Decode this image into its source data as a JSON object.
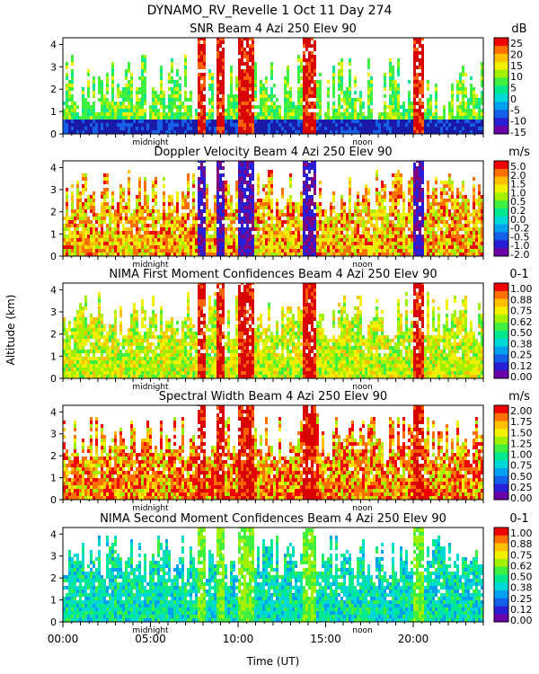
{
  "header": {
    "title": "DYNAMO_RV_Revelle    1 Oct 11 Day 274"
  },
  "shared": {
    "xlabel": "Time (UT)",
    "ylabel": "Altitude (km)",
    "x_ticks": [
      "00:00",
      "05:00",
      "10:00",
      "15:00",
      "20:00"
    ],
    "x_tick_hours": [
      0,
      5,
      10,
      15,
      20
    ],
    "y_ticks": [
      "0",
      "1",
      "2",
      "3",
      "4"
    ],
    "annot_midnight": "midnight",
    "annot_noon": "noon"
  },
  "colors": {
    "scale": [
      "#6a00a8",
      "#2a1fd8",
      "#1560e8",
      "#00a0f0",
      "#00d8d8",
      "#00e890",
      "#40f040",
      "#a0f000",
      "#f0f000",
      "#ffc000",
      "#ff7000",
      "#f00000"
    ],
    "snr_bg": "#40e840",
    "snr_low": "#1a1aa8",
    "bands": [
      "#d80000",
      "#ff6000",
      "#2a1fd8",
      "#800080"
    ]
  },
  "chart_data": [
    {
      "type": "heatmap",
      "title": "SNR Beam 4 Azi 250 Elev 90",
      "unit": "dB",
      "colorbar_labels": [
        "25",
        "20",
        "15",
        "10",
        "5",
        "0",
        "-5",
        "-10",
        "-15"
      ],
      "colorbar_range": [
        -17,
        29
      ],
      "x_range_hours": [
        0,
        24
      ],
      "ylim_km": [
        0,
        4.3
      ],
      "echo_top_km": 3.6
    },
    {
      "type": "heatmap",
      "title": "Doppler Velocity Beam 4 Azi 250 Elev 90",
      "unit": "m/s",
      "colorbar_labels": [
        "5.0",
        "2.0",
        "1.5",
        "1.0",
        "0.5",
        "0.2",
        "0.0",
        "-0.2",
        "-0.5",
        "-1.0",
        "-2.0"
      ],
      "colorbar_range": [
        -2.5,
        5.5
      ],
      "x_range_hours": [
        0,
        24
      ],
      "ylim_km": [
        0,
        4.3
      ],
      "echo_top_km": 3.8
    },
    {
      "type": "heatmap",
      "title": "NIMA First Moment Confidences Beam 4 Azi 250 Elev 90",
      "unit": "0-1",
      "colorbar_labels": [
        "1.00",
        "0.88",
        "0.75",
        "0.62",
        "0.50",
        "0.38",
        "0.25",
        "0.12",
        "0.00"
      ],
      "colorbar_range": [
        0,
        1
      ],
      "x_range_hours": [
        0,
        24
      ],
      "ylim_km": [
        0,
        4.3
      ],
      "echo_top_km": 3.8
    },
    {
      "type": "heatmap",
      "title": "Spectral Width Beam 4 Azi 250 Elev 90",
      "unit": "m/s",
      "colorbar_labels": [
        "2.00",
        "1.75",
        "1.50",
        "1.25",
        "1.00",
        "0.75",
        "0.50",
        "0.25",
        "0.00"
      ],
      "colorbar_range": [
        0,
        2
      ],
      "x_range_hours": [
        0,
        24
      ],
      "ylim_km": [
        0,
        4.3
      ],
      "echo_top_km": 3.8
    },
    {
      "type": "heatmap",
      "title": "NIMA Second Moment Confidences Beam 4 Azi 250 Elev 90",
      "unit": "0-1",
      "colorbar_labels": [
        "1.00",
        "0.88",
        "0.75",
        "0.62",
        "0.50",
        "0.38",
        "0.25",
        "0.12",
        "0.00"
      ],
      "colorbar_range": [
        0,
        1
      ],
      "x_range_hours": [
        0,
        24
      ],
      "ylim_km": [
        0,
        4.3
      ],
      "echo_top_km": 3.9
    }
  ]
}
